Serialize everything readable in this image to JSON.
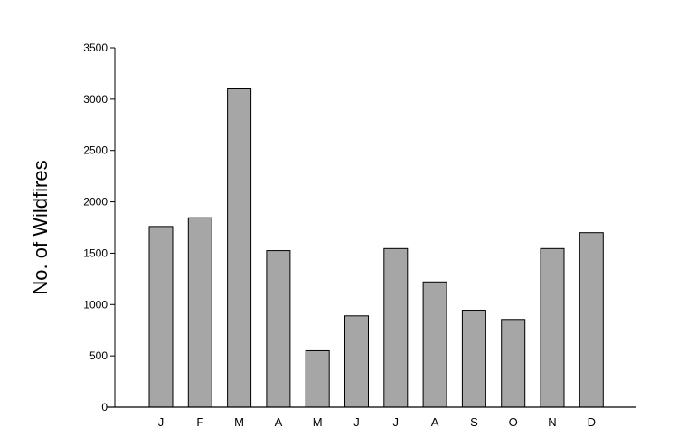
{
  "chart_data": {
    "type": "bar",
    "title": "",
    "xlabel": "",
    "ylabel": "No. of Wildfires",
    "categories": [
      "J",
      "F",
      "M",
      "A",
      "M",
      "J",
      "J",
      "A",
      "S",
      "O",
      "N",
      "D"
    ],
    "values": [
      1760,
      1845,
      3100,
      1525,
      550,
      890,
      1545,
      1220,
      945,
      855,
      1545,
      1700
    ],
    "ylim": [
      0,
      3500
    ],
    "yticks": [
      "0",
      "500",
      "1000",
      "1500",
      "2000",
      "2500",
      "3000",
      "3500"
    ],
    "grid": false,
    "bar_color": "#a6a6a6",
    "bar_edge_color": "#000000"
  }
}
